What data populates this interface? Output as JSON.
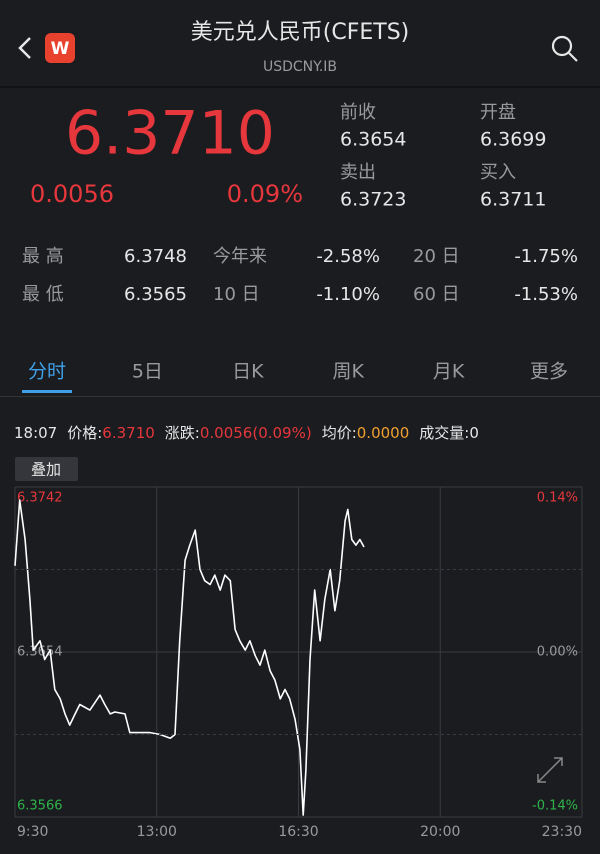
{
  "header": {
    "logo": "W",
    "title": "美元兑人民币(CFETS)",
    "subtitle": "USDCNY.IB"
  },
  "quote": {
    "price": "6.3710",
    "change": "0.0056",
    "change_pct": "0.09%",
    "fields": [
      {
        "label": "前收",
        "value": "6.3654"
      },
      {
        "label": "开盘",
        "value": "6.3699"
      },
      {
        "label": "卖出",
        "value": "6.3723"
      },
      {
        "label": "买入",
        "value": "6.3711"
      }
    ]
  },
  "stats": [
    [
      {
        "label": "最 高",
        "value": "6.3748"
      },
      {
        "label": "今年来",
        "value": "-2.58%"
      },
      {
        "label": "20 日",
        "value": "-1.75%"
      }
    ],
    [
      {
        "label": "最 低",
        "value": "6.3565"
      },
      {
        "label": "10 日",
        "value": "-1.10%"
      },
      {
        "label": "60 日",
        "value": "-1.53%"
      }
    ]
  ],
  "tabs": [
    "分时",
    "5日",
    "日K",
    "周K",
    "月K",
    "更多"
  ],
  "info_bar": {
    "time": "18:07",
    "price_label": "价格:",
    "price": "6.3710",
    "change_label": "涨跌:",
    "change": "0.0056(0.09%)",
    "avg_label": "均价:",
    "avg": "0.0000",
    "volume": "成交量:0"
  },
  "overlay_button": "叠加",
  "chart_data": {
    "type": "line",
    "color": "#ffffff",
    "x": [
      "9:30",
      "9:37",
      "9:45",
      "9:52",
      "9:57",
      "10:07",
      "10:14",
      "10:22",
      "10:29",
      "10:37",
      "10:44",
      "10:51",
      "10:59",
      "11:06",
      "11:21",
      "11:36",
      "11:43",
      "11:51",
      "11:58",
      "12:13",
      "12:20",
      "12:35",
      "12:50",
      "13:05",
      "13:20",
      "13:27",
      "13:34",
      "13:42",
      "13:49",
      "13:57",
      "14:04",
      "14:11",
      "14:19",
      "14:26",
      "14:34",
      "14:41",
      "14:49",
      "14:56",
      "15:03",
      "15:11",
      "15:18",
      "15:26",
      "15:33",
      "15:40",
      "15:48",
      "15:55",
      "16:03",
      "16:10",
      "16:17",
      "16:25",
      "16:32",
      "16:37",
      "16:41",
      "16:47",
      "16:54",
      "17:02",
      "17:09",
      "17:17",
      "17:24",
      "17:31",
      "17:39",
      "17:43",
      "17:49",
      "17:55",
      "18:01",
      "18:07"
    ],
    "values": [
      6.37,
      6.3735,
      6.3714,
      6.3682,
      6.3655,
      6.366,
      6.365,
      6.3655,
      6.3634,
      6.3629,
      6.3621,
      6.3615,
      6.3621,
      6.3626,
      6.3623,
      6.3631,
      6.3626,
      6.3621,
      6.3622,
      6.3621,
      6.3611,
      6.3611,
      6.3611,
      6.361,
      6.3608,
      6.361,
      6.366,
      6.3703,
      6.3711,
      6.3719,
      6.3698,
      6.3692,
      6.369,
      6.3695,
      6.3687,
      6.3695,
      6.3692,
      6.3666,
      6.366,
      6.3655,
      6.366,
      6.3652,
      6.3647,
      6.3655,
      6.3644,
      6.3639,
      6.3629,
      6.3634,
      6.3629,
      6.3618,
      6.3602,
      6.3567,
      6.3591,
      6.365,
      6.3687,
      6.366,
      6.3682,
      6.3698,
      6.3676,
      6.3692,
      6.3724,
      6.373,
      6.3714,
      6.3711,
      6.3714,
      6.371
    ],
    "xlim": [
      "9:30",
      "23:30"
    ],
    "xticks": [
      "9:30",
      "13:00",
      "16:30",
      "20:00",
      "23:30"
    ],
    "ylim": [
      6.3566,
      6.3742
    ],
    "yticks": [
      6.3742,
      6.3654,
      6.3566
    ],
    "y2lim": [
      -0.14,
      0.14
    ],
    "y2ticks": [
      {
        "value": 0.14,
        "label": "0.14%"
      },
      {
        "value": 0,
        "label": "0.00%"
      },
      {
        "value": -0.14,
        "label": "-0.14%"
      }
    ],
    "grid": true
  }
}
